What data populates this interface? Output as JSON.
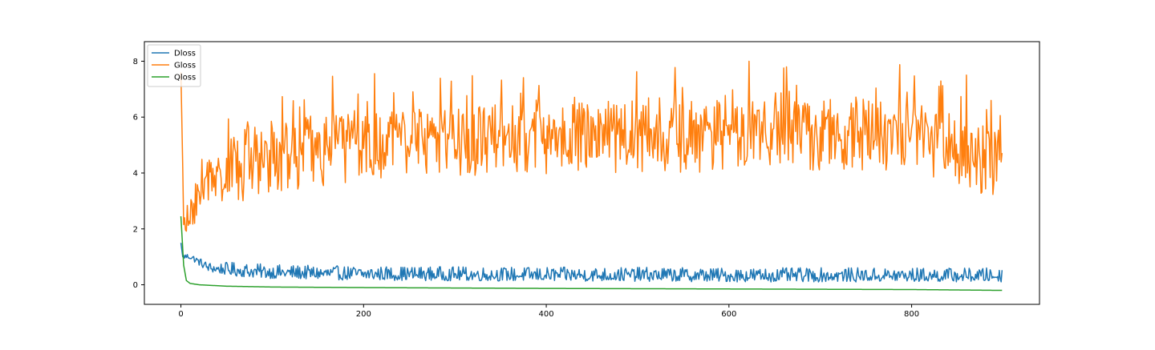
{
  "chart_data": {
    "type": "line",
    "title": "",
    "xlabel": "",
    "ylabel": "",
    "xlim": [
      -40,
      940
    ],
    "ylim": [
      -0.7,
      8.7
    ],
    "x_ticks": [
      0,
      200,
      400,
      600,
      800
    ],
    "y_ticks": [
      0,
      2,
      4,
      6,
      8
    ],
    "grid": false,
    "legend_position": "top-left",
    "n_points": 900,
    "series": [
      {
        "name": "Dloss",
        "color": "#1f77b4",
        "points": [
          [
            0,
            1.5
          ],
          [
            2,
            1.0
          ],
          [
            5,
            1.0
          ],
          [
            10,
            1.0
          ],
          [
            15,
            0.9
          ],
          [
            20,
            0.8
          ],
          [
            25,
            0.7
          ],
          [
            30,
            0.6
          ],
          [
            40,
            0.55
          ],
          [
            60,
            0.5
          ],
          [
            80,
            0.45
          ],
          [
            100,
            0.42
          ],
          [
            150,
            0.38
          ],
          [
            200,
            0.36
          ],
          [
            300,
            0.34
          ],
          [
            400,
            0.32
          ],
          [
            500,
            0.32
          ],
          [
            600,
            0.3
          ],
          [
            700,
            0.3
          ],
          [
            800,
            0.3
          ],
          [
            899,
            0.3
          ]
        ],
        "noise_amplitude": 0.22
      },
      {
        "name": "Gloss",
        "color": "#ff7f0e",
        "points": [
          [
            0,
            7.6
          ],
          [
            3,
            2.5
          ],
          [
            5,
            2.1
          ],
          [
            10,
            2.4
          ],
          [
            20,
            3.3
          ],
          [
            30,
            3.7
          ],
          [
            50,
            4.1
          ],
          [
            80,
            4.4
          ],
          [
            100,
            4.6
          ],
          [
            150,
            4.8
          ],
          [
            200,
            5.0
          ],
          [
            300,
            5.1
          ],
          [
            400,
            5.2
          ],
          [
            500,
            5.3
          ],
          [
            600,
            5.3
          ],
          [
            700,
            5.4
          ],
          [
            800,
            5.4
          ],
          [
            899,
            4.3
          ]
        ],
        "noise_amplitude": 1.3
      },
      {
        "name": "Qloss",
        "color": "#2ca02c",
        "points": [
          [
            0,
            2.45
          ],
          [
            3,
            0.7
          ],
          [
            6,
            0.15
          ],
          [
            10,
            0.05
          ],
          [
            20,
            0.0
          ],
          [
            50,
            -0.05
          ],
          [
            100,
            -0.08
          ],
          [
            200,
            -0.1
          ],
          [
            400,
            -0.13
          ],
          [
            600,
            -0.15
          ],
          [
            800,
            -0.17
          ],
          [
            899,
            -0.2
          ]
        ],
        "noise_amplitude": 0.0
      }
    ]
  }
}
